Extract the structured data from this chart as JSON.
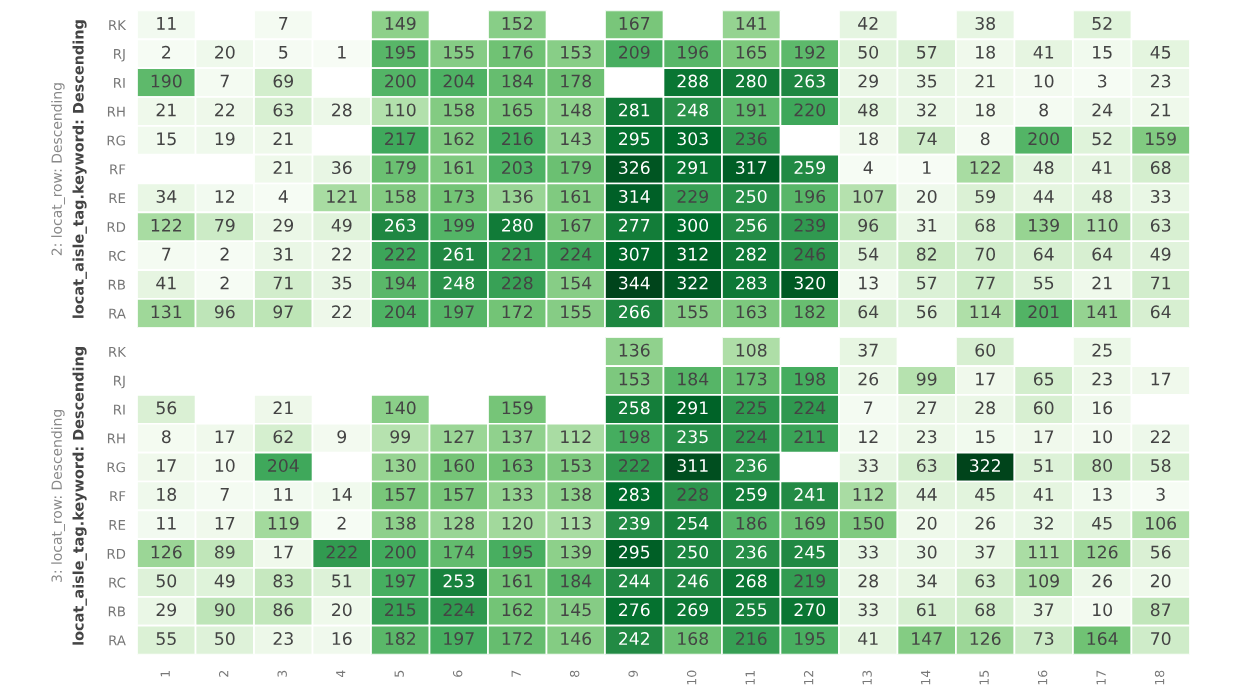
{
  "chart_data": [
    {
      "type": "heatmap",
      "ylabel": "locat_aisle_tag.keyword: Descending",
      "annotations": [
        "2: locat_row: Descending"
      ],
      "data_labels": true,
      "tick_labels": "y",
      "categories": [
        "1",
        "2",
        "3",
        "4",
        "5",
        "6",
        "7",
        "8",
        "9",
        "10",
        "11",
        "12",
        "13",
        "14",
        "15",
        "16",
        "17",
        "18"
      ],
      "y_categories": [
        "RK",
        "RJ",
        "RI",
        "RH",
        "RG",
        "RF",
        "RE",
        "RD",
        "RC",
        "RB",
        "RA"
      ],
      "cells": [
        [
          11,
          null,
          7,
          null,
          149,
          null,
          152,
          null,
          167,
          null,
          141,
          null,
          42,
          null,
          38,
          null,
          52,
          null
        ],
        [
          2,
          20,
          5,
          1,
          195,
          155,
          176,
          153,
          209,
          196,
          165,
          192,
          50,
          57,
          18,
          41,
          15,
          45
        ],
        [
          190,
          7,
          69,
          null,
          200,
          204,
          184,
          178,
          null,
          288,
          280,
          263,
          29,
          35,
          21,
          10,
          3,
          23
        ],
        [
          21,
          22,
          63,
          28,
          110,
          158,
          165,
          148,
          281,
          248,
          191,
          220,
          48,
          32,
          18,
          8,
          24,
          21
        ],
        [
          15,
          19,
          21,
          null,
          217,
          162,
          216,
          143,
          295,
          303,
          236,
          null,
          18,
          74,
          8,
          200,
          52,
          159
        ],
        [
          null,
          null,
          21,
          36,
          179,
          161,
          203,
          179,
          326,
          291,
          317,
          259,
          4,
          1,
          122,
          48,
          41,
          68
        ],
        [
          34,
          12,
          4,
          121,
          158,
          173,
          136,
          161,
          314,
          229,
          250,
          196,
          107,
          20,
          59,
          44,
          48,
          33
        ],
        [
          122,
          79,
          29,
          49,
          263,
          199,
          280,
          167,
          277,
          300,
          256,
          239,
          96,
          31,
          68,
          139,
          110,
          63
        ],
        [
          7,
          2,
          31,
          22,
          222,
          261,
          221,
          224,
          307,
          312,
          282,
          246,
          54,
          82,
          70,
          64,
          64,
          49
        ],
        [
          41,
          2,
          71,
          35,
          194,
          248,
          228,
          154,
          344,
          322,
          283,
          320,
          13,
          57,
          77,
          55,
          21,
          71
        ],
        [
          131,
          96,
          97,
          22,
          204,
          197,
          172,
          155,
          266,
          155,
          163,
          182,
          64,
          56,
          114,
          201,
          141,
          64
        ]
      ]
    },
    {
      "type": "heatmap",
      "ylabel": "locat_aisle_tag.keyword: Descending",
      "annotations": [
        "3: locat_row: Descending"
      ],
      "data_labels": true,
      "categories": [
        "1",
        "2",
        "3",
        "4",
        "5",
        "6",
        "7",
        "8",
        "9",
        "10",
        "11",
        "12",
        "13",
        "14",
        "15",
        "16",
        "17",
        "18"
      ],
      "y_categories": [
        "RK",
        "RJ",
        "RI",
        "RH",
        "RG",
        "RF",
        "RE",
        "RD",
        "RC",
        "RB",
        "RA"
      ],
      "cells": [
        [
          null,
          null,
          null,
          null,
          null,
          null,
          null,
          null,
          136,
          null,
          108,
          null,
          37,
          null,
          60,
          null,
          25,
          null
        ],
        [
          null,
          null,
          null,
          null,
          null,
          null,
          null,
          null,
          153,
          184,
          173,
          198,
          26,
          99,
          17,
          65,
          23,
          17
        ],
        [
          56,
          null,
          21,
          null,
          140,
          null,
          159,
          null,
          258,
          291,
          225,
          224,
          7,
          27,
          28,
          60,
          16,
          null
        ],
        [
          8,
          17,
          62,
          9,
          99,
          127,
          137,
          112,
          198,
          235,
          224,
          211,
          12,
          23,
          15,
          17,
          10,
          22
        ],
        [
          17,
          10,
          204,
          null,
          130,
          160,
          163,
          153,
          222,
          311,
          236,
          null,
          33,
          63,
          322,
          51,
          80,
          58
        ],
        [
          18,
          7,
          11,
          14,
          157,
          157,
          133,
          138,
          283,
          228,
          259,
          241,
          112,
          44,
          45,
          41,
          13,
          3
        ],
        [
          11,
          17,
          119,
          2,
          138,
          128,
          120,
          113,
          239,
          254,
          186,
          169,
          150,
          20,
          26,
          32,
          45,
          106
        ],
        [
          126,
          89,
          17,
          222,
          200,
          174,
          195,
          139,
          295,
          250,
          236,
          245,
          33,
          30,
          37,
          111,
          126,
          56
        ],
        [
          50,
          49,
          83,
          51,
          197,
          253,
          161,
          184,
          244,
          246,
          268,
          219,
          28,
          34,
          63,
          109,
          26,
          20
        ],
        [
          29,
          90,
          86,
          20,
          215,
          224,
          162,
          145,
          276,
          269,
          255,
          270,
          33,
          61,
          68,
          37,
          10,
          87
        ],
        [
          55,
          50,
          23,
          16,
          182,
          197,
          172,
          146,
          242,
          168,
          216,
          195,
          41,
          147,
          126,
          73,
          164,
          70
        ]
      ]
    }
  ]
}
